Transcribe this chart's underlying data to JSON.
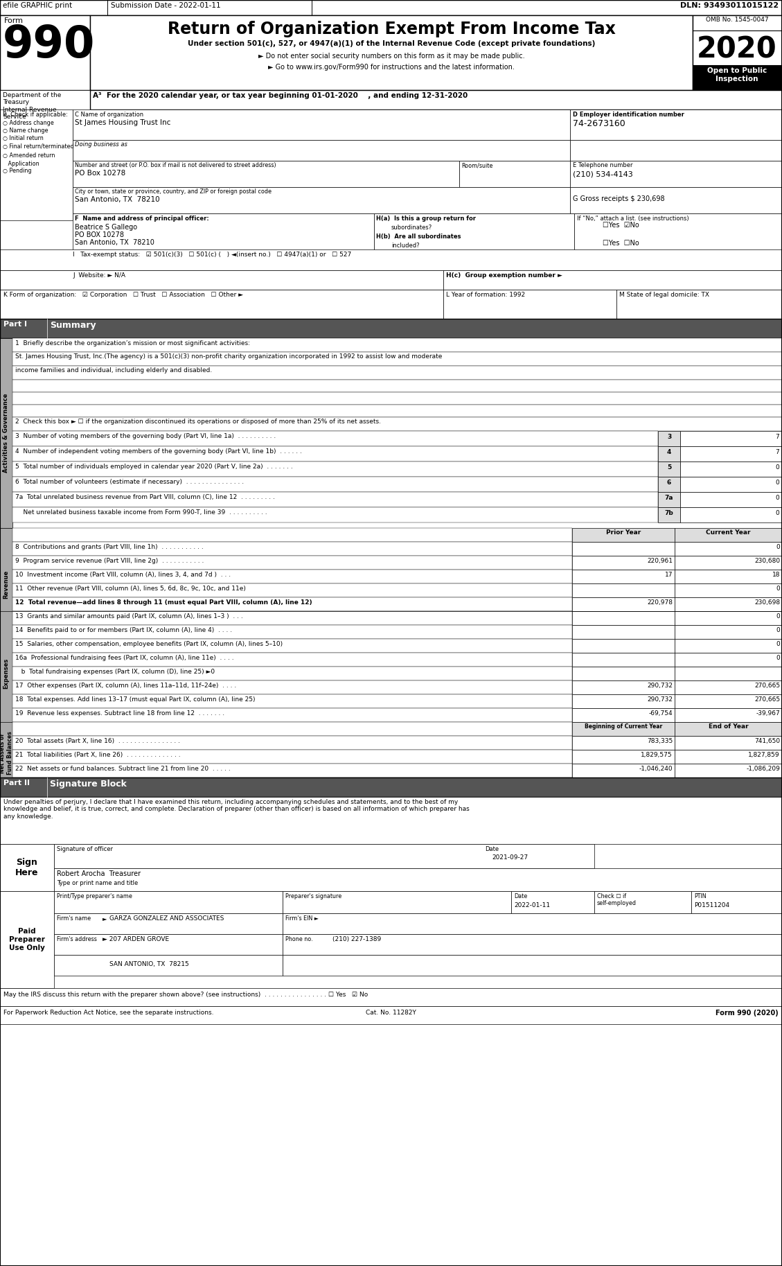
{
  "form_number": "990",
  "form_title": "Return of Organization Exempt From Income Tax",
  "subtitle1": "Under section 501(c), 527, or 4947(a)(1) of the Internal Revenue Code (except private foundations)",
  "subtitle2": "► Do not enter social security numbers on this form as it may be made public.",
  "subtitle3": "► Go to www.irs.gov/Form990 for instructions and the latest information.",
  "omb": "OMB No. 1545-0047",
  "year": "2020",
  "year_line": "A³  For the 2020 calendar year, or tax year beginning 01-01-2020    , and ending 12-31-2020",
  "org_name": "St James Housing Trust Inc",
  "address": "PO Box 10278",
  "city": "San Antonio, TX  78210",
  "ein": "74-2673160",
  "phone": "(210) 534-4143",
  "gross_receipts": "G Gross receipts $ 230,698",
  "principal_name": "Beatrice S Gallego",
  "principal_addr1": "PO BOX 10278",
  "principal_addr2": "San Antonio, TX  78210",
  "tax_exempt": "I   Tax-exempt status:   ☑ 501(c)(3)   ☐ 501(c) (   ) ◄(insert no.)   ☐ 4947(a)(1) or   ☐ 527",
  "if_no": "If “No,” attach a list. (see instructions)",
  "website_label": "J  Website: ► N/A",
  "hc_label": "H(c)  Group exemption number ►",
  "form_org_label": "K Form of organization:   ☑ Corporation   ☐ Trust   ☐ Association   ☐ Other ►",
  "year_form": "L Year of formation: 1992",
  "state_dom": "M State of legal domicile: TX",
  "mission_text1": "St. James Housing Trust, Inc.(The agency) is a 501(c)(3) non-profit charity organization incorporated in 1992 to assist low and moderate",
  "mission_text2": "income families and individual, including elderly and disabled.",
  "check2": "2  Check this box ► ☐ if the organization discontinued its operations or disposed of more than 25% of its net assets.",
  "line3": "3  Number of voting members of the governing body (Part VI, line 1a)  . . . . . . . . . .",
  "line4": "4  Number of independent voting members of the governing body (Part VI, line 1b)  . . . . . .",
  "line5": "5  Total number of individuals employed in calendar year 2020 (Part V, line 2a)  . . . . . . .",
  "line6": "6  Total number of volunteers (estimate if necessary)  . . . . . . . . . . . . . . .",
  "line7a": "7a  Total unrelated business revenue from Part VIII, column (C), line 12  . . . . . . . . .",
  "line7b": "    Net unrelated business taxable income from Form 990-T, line 39  . . . . . . . . . .",
  "line8": "8  Contributions and grants (Part VIII, line 1h)  . . . . . . . . . . .",
  "line9": "9  Program service revenue (Part VIII, line 2g)  . . . . . . . . . . .",
  "line10": "10  Investment income (Part VIII, column (A), lines 3, 4, and 7d )  . . .",
  "line11": "11  Other revenue (Part VIII, column (A), lines 5, 6d, 8c, 9c, 10c, and 11e)",
  "line12": "12  Total revenue—add lines 8 through 11 (must equal Part VIII, column (A), line 12)",
  "line13": "13  Grants and similar amounts paid (Part IX, column (A), lines 1–3 )  . . .",
  "line14": "14  Benefits paid to or for members (Part IX, column (A), line 4)  . . . .",
  "line15": "15  Salaries, other compensation, employee benefits (Part IX, column (A), lines 5–10)",
  "line16a": "16a  Professional fundraising fees (Part IX, column (A), line 11e)  . . . .",
  "line16b": "   b  Total fundraising expenses (Part IX, column (D), line 25) ►0",
  "line17": "17  Other expenses (Part IX, column (A), lines 11a–11d, 11f–24e)  . . . .",
  "line18": "18  Total expenses. Add lines 13–17 (must equal Part IX, column (A), line 25)",
  "line19": "19  Revenue less expenses. Subtract line 18 from line 12  . . . . . . .",
  "line20": "20  Total assets (Part X, line 16)  . . . . . . . . . . . . . . . .",
  "line21": "21  Total liabilities (Part X, line 26)  . . . . . . . . . . . . . .",
  "line22": "22  Net assets or fund balances. Subtract line 21 from line 20  . . . . .",
  "sig_text": "Under penalties of perjury, I declare that I have examined this return, including accompanying schedules and statements, and to the best of my\nknowledge and belief, it is true, correct, and complete. Declaration of preparer (other than officer) is based on all information of which preparer has\nany knowledge.",
  "sig_date": "2021-09-27",
  "sig_name": "Robert Arocha  Treasurer",
  "sig_title": "Type or print name and title",
  "prep_date": "2022-01-11",
  "ptin": "P01511204",
  "firm_name": "► GARZA GONZALEZ AND ASSOCIATES",
  "firm_addr": "► 207 ARDEN GROVE",
  "firm_city": "SAN ANTONIO, TX  78215",
  "phone_no": "(210) 227-1389",
  "discuss_label": "May the IRS discuss this return with the preparer shown above? (see instructions)  . . . . . . . . . . . . . . . . ☐ Yes   ☑ No",
  "paperwork_label": "For Paperwork Reduction Act Notice, see the separate instructions.",
  "cat_no": "Cat. No. 11282Y",
  "form_footer": "Form 990 (2020)"
}
